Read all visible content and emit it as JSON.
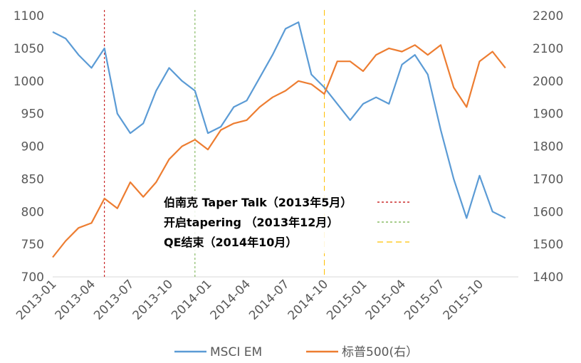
{
  "chart_data": {
    "type": "line",
    "title": "",
    "xlabel": "",
    "ylabel_left": "",
    "ylabel_right": "",
    "x_tick_labels": [
      "2013-01",
      "2013-04",
      "2013-07",
      "2013-10",
      "2014-01",
      "2014-04",
      "2014-07",
      "2014-10",
      "2015-01",
      "2015-04",
      "2015-07",
      "2015-10"
    ],
    "x_range": [
      "2013-01",
      "2016-01"
    ],
    "ylim_left": [
      700,
      1100
    ],
    "ylim_right": [
      1400,
      2200
    ],
    "left_ticks": [
      "700",
      "750",
      "800",
      "850",
      "900",
      "950",
      "1000",
      "1050",
      "1100"
    ],
    "right_ticks": [
      "1400",
      "1500",
      "1600",
      "1700",
      "1800",
      "1900",
      "2000",
      "2100",
      "2200"
    ],
    "grid": false,
    "legend_position": "bottom",
    "series": [
      {
        "name": "MSCI EM",
        "axis": "left",
        "color": "#5B9BD5",
        "x": [
          "2013-01",
          "2013-02",
          "2013-03",
          "2013-04",
          "2013-05",
          "2013-06",
          "2013-07",
          "2013-08",
          "2013-09",
          "2013-10",
          "2013-11",
          "2013-12",
          "2014-01",
          "2014-02",
          "2014-03",
          "2014-04",
          "2014-05",
          "2014-06",
          "2014-07",
          "2014-08",
          "2014-09",
          "2014-10",
          "2014-11",
          "2014-12",
          "2015-01",
          "2015-02",
          "2015-03",
          "2015-04",
          "2015-05",
          "2015-06",
          "2015-07",
          "2015-08",
          "2015-09",
          "2015-10",
          "2015-11",
          "2015-12"
        ],
        "y": [
          1075,
          1065,
          1040,
          1020,
          1050,
          950,
          920,
          935,
          985,
          1020,
          1000,
          985,
          920,
          930,
          960,
          970,
          1005,
          1040,
          1080,
          1090,
          1010,
          990,
          965,
          940,
          965,
          975,
          965,
          1025,
          1040,
          1010,
          925,
          850,
          790,
          855,
          800,
          790
        ]
      },
      {
        "name": "标普500(右）",
        "axis": "right",
        "color": "#ED7D31",
        "x": [
          "2013-01",
          "2013-02",
          "2013-03",
          "2013-04",
          "2013-05",
          "2013-06",
          "2013-07",
          "2013-08",
          "2013-09",
          "2013-10",
          "2013-11",
          "2013-12",
          "2014-01",
          "2014-02",
          "2014-03",
          "2014-04",
          "2014-05",
          "2014-06",
          "2014-07",
          "2014-08",
          "2014-09",
          "2014-10",
          "2014-11",
          "2014-12",
          "2015-01",
          "2015-02",
          "2015-03",
          "2015-04",
          "2015-05",
          "2015-06",
          "2015-07",
          "2015-08",
          "2015-09",
          "2015-10",
          "2015-11",
          "2015-12"
        ],
        "y": [
          1460,
          1510,
          1550,
          1565,
          1640,
          1610,
          1690,
          1645,
          1690,
          1760,
          1800,
          1820,
          1790,
          1850,
          1870,
          1880,
          1920,
          1950,
          1970,
          2000,
          1990,
          1960,
          2060,
          2060,
          2030,
          2080,
          2100,
          2090,
          2110,
          2080,
          2110,
          1980,
          1920,
          2060,
          2090,
          2040
        ]
      }
    ],
    "annotations": [
      {
        "label": "伯南克 Taper Talk（2013年5月）",
        "x": "2013-05",
        "color": "#C00000",
        "dash": "3,3"
      },
      {
        "label": "开启tapering （2013年12月）",
        "x": "2013-12",
        "color": "#70AD47",
        "dash": "3,3"
      },
      {
        "label": "QE结束（2014年10月）",
        "x": "2014-10",
        "color": "#FFC000",
        "dash": "8,5"
      }
    ]
  }
}
